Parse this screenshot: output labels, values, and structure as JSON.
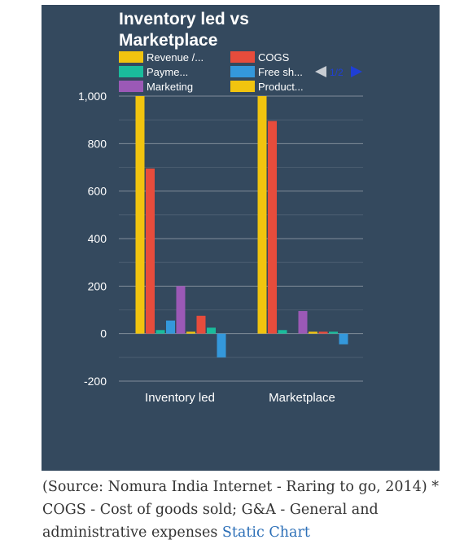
{
  "chart_data": {
    "type": "bar",
    "title": "Inventory led vs Marketplace",
    "title_lines": [
      "Inventory led vs",
      "Marketplace"
    ],
    "categories": [
      "Inventory led",
      "Marketplace"
    ],
    "ylim": [
      -200,
      1000
    ],
    "y_ticks": [
      -200,
      0,
      200,
      400,
      600,
      800,
      1000
    ],
    "y_tick_labels": [
      "-200",
      "0",
      "200",
      "400",
      "600",
      "800",
      "1,000"
    ],
    "gridlines": true,
    "legend_position": "top",
    "legend_pager": "1/2",
    "series": [
      {
        "name": "Revenue /...",
        "color": "#f1c40f",
        "values": [
          1000,
          1000
        ]
      },
      {
        "name": "COGS",
        "color": "#e74c3c",
        "values": [
          695,
          895
        ]
      },
      {
        "name": "Payme...",
        "color": "#1abc9c",
        "values": [
          15,
          15
        ]
      },
      {
        "name": "Free sh...",
        "color": "#3498db",
        "values": [
          55,
          0
        ]
      },
      {
        "name": "Marketing",
        "color": "#9b59b6",
        "values": [
          200,
          95
        ]
      },
      {
        "name": "Product...",
        "color": "#f1c40f",
        "values": [
          8,
          8
        ]
      },
      {
        "color": "#e74c3c",
        "values": [
          75,
          8
        ]
      },
      {
        "color": "#1abc9c",
        "values": [
          25,
          8
        ]
      },
      {
        "color": "#3498db",
        "values": [
          -100,
          -45
        ]
      }
    ]
  },
  "caption": {
    "text": "(Source: Nomura India Internet - Raring to go, 2014) * COGS - Cost of goods sold; G&A - General and administrative expenses",
    "link_label": "Static Chart"
  }
}
